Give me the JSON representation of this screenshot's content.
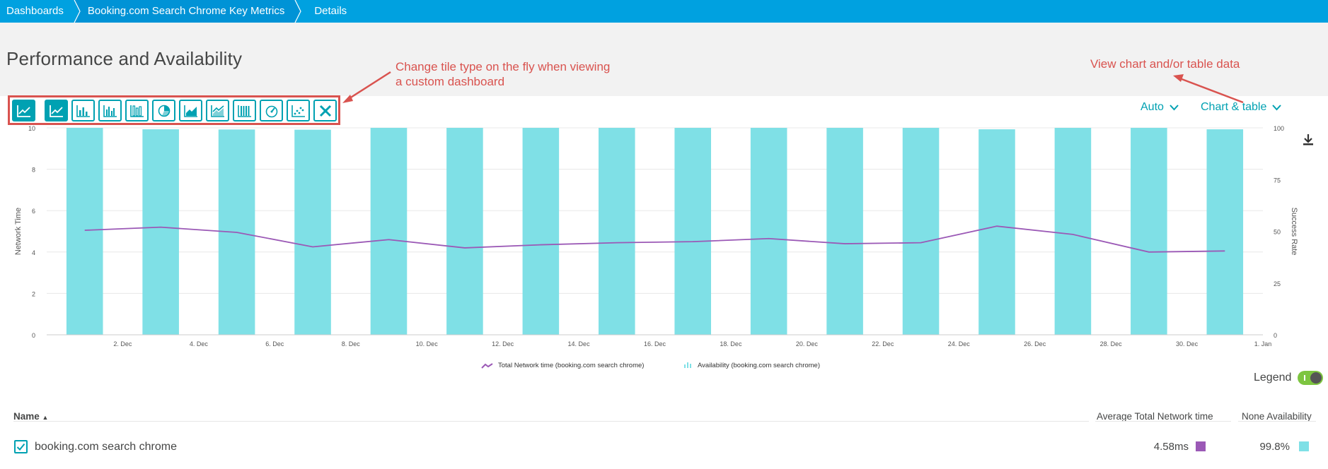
{
  "breadcrumb": {
    "items": [
      "Dashboards",
      "Booking.com Search Chrome Key Metrics",
      "Details"
    ]
  },
  "page": {
    "title": "Performance and Availability"
  },
  "annotations": {
    "tile_type": "Change tile type on the fly when viewing\na custom dashboard",
    "chart_table": "View chart and/or table data"
  },
  "toolbar": {
    "icons": [
      "line-chart-icon",
      "line-chart-icon",
      "bar-chart-icon",
      "grouped-bar-chart-icon",
      "stacked-bar-chart-icon",
      "pie-chart-icon",
      "area-chart-icon",
      "stacked-area-chart-icon",
      "stacked-columns-icon",
      "gauge-icon",
      "scatter-plot-icon",
      "pin-tile-icon"
    ],
    "active_index": 0
  },
  "controls": {
    "resolution": "Auto",
    "view_mode": "Chart & table"
  },
  "colors": {
    "accent": "#00a1b2",
    "breadcrumb": "#00a1e0",
    "network_time": "#9b59b6",
    "availability": "#7fe0e6",
    "annotation": "#d9534f"
  },
  "chart_data": {
    "type": "bar",
    "x_tick_labels": [
      "2. Dec",
      "4. Dec",
      "6. Dec",
      "8. Dec",
      "10. Dec",
      "12. Dec",
      "14. Dec",
      "16. Dec",
      "18. Dec",
      "20. Dec",
      "22. Dec",
      "24. Dec",
      "26. Dec",
      "28. Dec",
      "30. Dec",
      "1. Jan"
    ],
    "ylabel_left": "Network Time",
    "ylabel_right": "Success Rate",
    "ylim_left": [
      0,
      10
    ],
    "ylim_right": [
      0,
      100
    ],
    "y_ticks_left": [
      "0",
      "2",
      "4",
      "6",
      "8",
      "10"
    ],
    "y_ticks_right": [
      "0",
      "25",
      "50",
      "75",
      "100"
    ],
    "grid": true,
    "series": [
      {
        "name": "Total Network time (booking.com search chrome)",
        "type": "line",
        "axis": "left",
        "values": [
          5.05,
          5.2,
          4.95,
          4.25,
          4.6,
          4.2,
          4.35,
          4.45,
          4.5,
          4.65,
          4.4,
          4.45,
          5.25,
          4.85,
          4.0,
          4.05
        ]
      },
      {
        "name": "Availability (booking.com search chrome)",
        "type": "bar",
        "axis": "right",
        "values": [
          100,
          99.3,
          99.2,
          99.1,
          100,
          100,
          100,
          100,
          100,
          100,
          100,
          100,
          99.3,
          100,
          100,
          99.3
        ]
      }
    ],
    "legend_position": "bottom"
  },
  "legend_toggle": {
    "label": "Legend",
    "on": true
  },
  "table": {
    "headers": {
      "name": "Name",
      "sort_indicator": "▲",
      "col1": "Average Total Network time",
      "col2": "None Availability"
    },
    "rows": [
      {
        "name": "booking.com search chrome",
        "network_time": "4.58ms",
        "availability": "99.8%"
      }
    ]
  }
}
